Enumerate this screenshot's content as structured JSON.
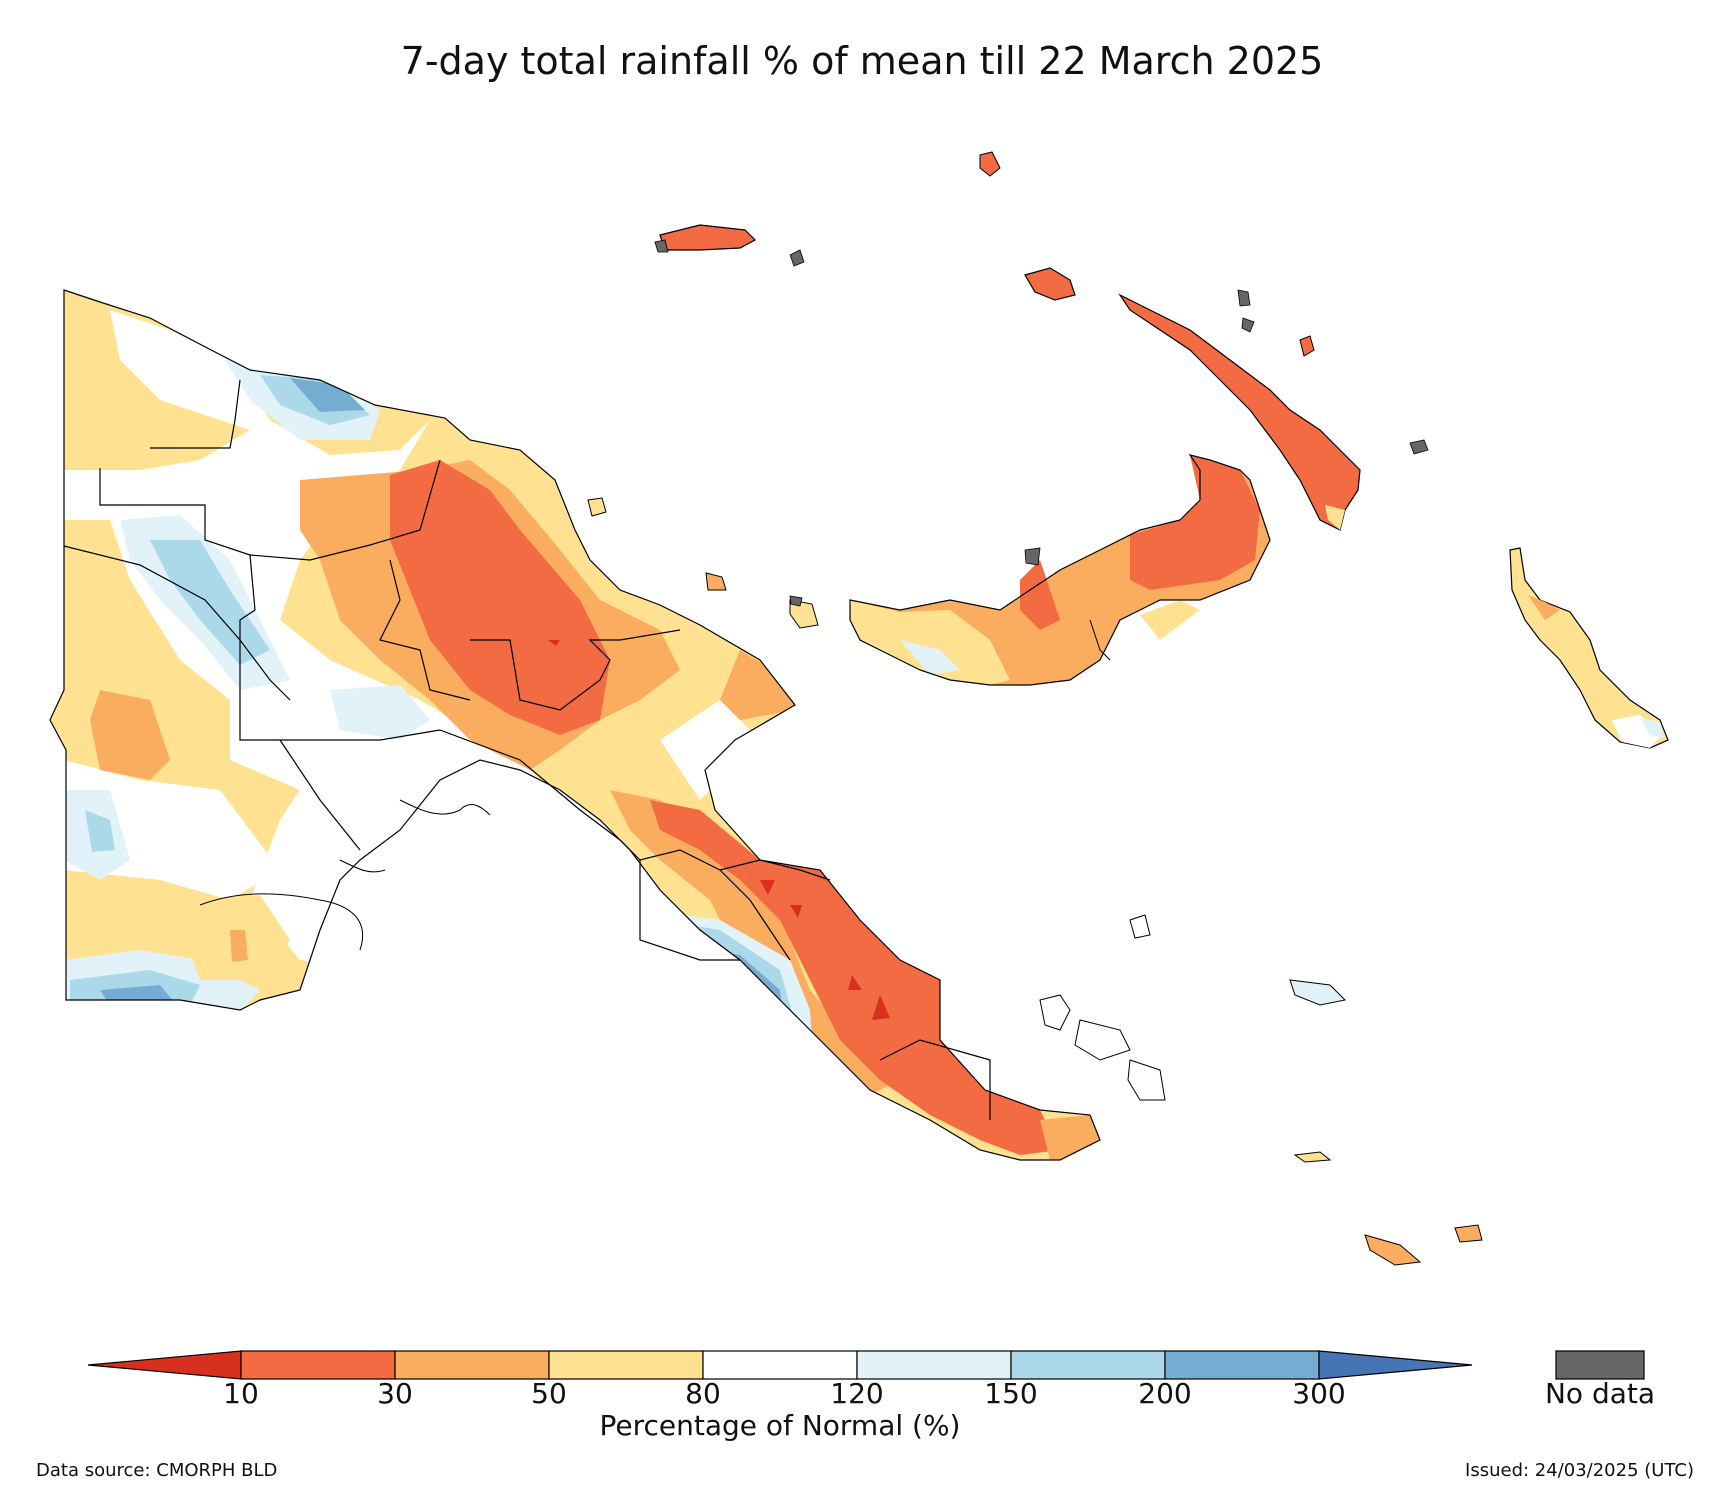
{
  "title": "7-day total rainfall % of mean till 22 March 2025",
  "colors": {
    "lt10": "#d7301f",
    "c10_30": "#f26b43",
    "c30_50": "#fbad5f",
    "c50_80": "#fee291",
    "c80_120": "#ffffff",
    "c120_150": "#e1f3f8",
    "c150_200": "#abd9e9",
    "c200_300": "#74add1",
    "gt300": "#4575b4",
    "nodata": "#666666"
  },
  "legend": {
    "ticks": [
      "10",
      "30",
      "50",
      "80",
      "120",
      "150",
      "200",
      "300"
    ],
    "label": "Percentage of Normal (%)",
    "nodata_label": "No data"
  },
  "footer": {
    "source": "Data source: CMORPH BLD",
    "issued": "Issued: 24/03/2025 (UTC)"
  }
}
